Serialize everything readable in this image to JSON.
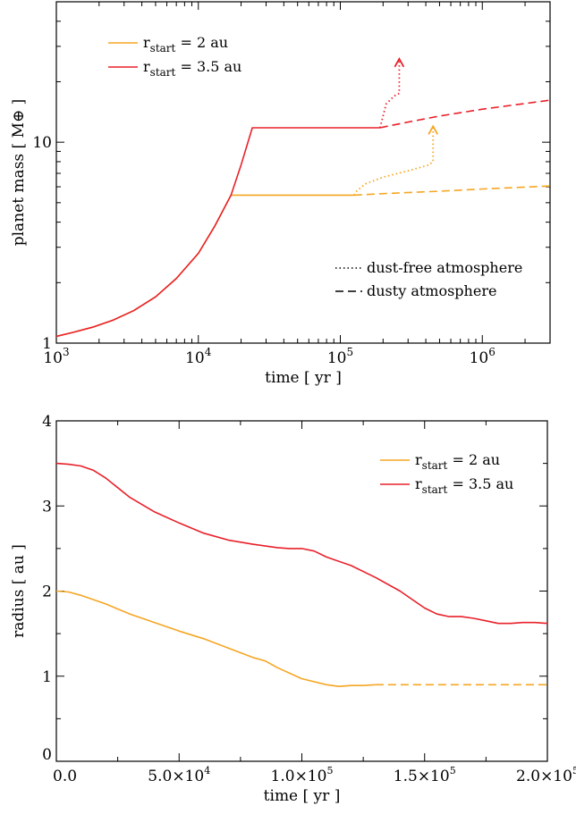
{
  "chart_data": [
    {
      "type": "line",
      "xscale": "log",
      "yscale": "log",
      "xlim": [
        1000,
        3000000
      ],
      "ylim": [
        1,
        50
      ],
      "xlabel": "time [ yr ]",
      "ylabel": "planet mass [ M⊕ ]",
      "xticks": [
        {
          "value": 1000,
          "base": "10",
          "exp": "3"
        },
        {
          "value": 10000,
          "base": "10",
          "exp": "4"
        },
        {
          "value": 100000,
          "base": "10",
          "exp": "5"
        },
        {
          "value": 1000000,
          "base": "10",
          "exp": "6"
        }
      ],
      "yticks": [
        {
          "value": 1,
          "label": "1"
        },
        {
          "value": 10,
          "label": "10"
        }
      ],
      "series": [
        {
          "name": "r_start = 2 au",
          "name_base": "r",
          "name_sub": "start",
          "name_rest": " = 2 au",
          "color": "#f5a623",
          "style": "solid",
          "x": [
            1000,
            1300,
            1800,
            2500,
            3500,
            5000,
            7000,
            10000,
            13000,
            17000,
            50000,
            100000,
            125000
          ],
          "y": [
            1.08,
            1.13,
            1.2,
            1.3,
            1.45,
            1.7,
            2.1,
            2.8,
            3.8,
            5.45,
            5.45,
            5.45,
            5.45
          ]
        },
        {
          "name": "r_start = 3.5 au",
          "name_base": "r",
          "name_sub": "start",
          "name_rest": " = 3.5 au",
          "color": "#e8202a",
          "style": "solid",
          "x": [
            1000,
            1300,
            1800,
            2500,
            3500,
            5000,
            7000,
            10000,
            13000,
            17000,
            20000,
            24000,
            50000,
            100000,
            190000
          ],
          "y": [
            1.08,
            1.13,
            1.2,
            1.3,
            1.45,
            1.7,
            2.1,
            2.8,
            3.8,
            5.45,
            7.7,
            11.8,
            11.8,
            11.8,
            11.8
          ]
        },
        {
          "name": "dusty (2 au)",
          "color": "#f5a623",
          "style": "dashed",
          "x": [
            125000,
            200000,
            500000,
            1000000,
            3000000
          ],
          "y": [
            5.45,
            5.55,
            5.7,
            5.85,
            6.05
          ]
        },
        {
          "name": "dusty (3.5 au)",
          "color": "#e8202a",
          "style": "dashed",
          "x": [
            190000,
            300000,
            500000,
            1000000,
            3000000
          ],
          "y": [
            11.8,
            12.6,
            13.5,
            14.6,
            16.2
          ]
        },
        {
          "name": "dust-free (2 au)",
          "color": "#f5a623",
          "style": "dotted",
          "arrow": true,
          "x": [
            125000,
            130000,
            150000,
            200000,
            300000,
            420000,
            450000,
            450000
          ],
          "y": [
            5.45,
            5.7,
            6.2,
            6.7,
            7.2,
            7.7,
            8.0,
            12.0
          ]
        },
        {
          "name": "dust-free (3.5 au)",
          "color": "#e8202a",
          "style": "dotted",
          "arrow": true,
          "x": [
            190000,
            200000,
            210000,
            240000,
            260000,
            260000
          ],
          "y": [
            11.8,
            13.5,
            15.5,
            17.0,
            17.5,
            26.0
          ]
        }
      ],
      "legend": {
        "placement": "top-left",
        "entries": [
          0,
          1
        ]
      },
      "style_legend": {
        "placement": "bottom-right",
        "entries": [
          {
            "label": "dust-free atmosphere",
            "style": "dotted"
          },
          {
            "label": "dusty atmosphere",
            "style": "dashed"
          }
        ]
      }
    },
    {
      "type": "line",
      "xscale": "linear",
      "yscale": "linear",
      "xlim": [
        0,
        200000
      ],
      "ylim": [
        0,
        4
      ],
      "xlabel": "time [ yr ]",
      "ylabel": "radius [ au ]",
      "xticks": [
        {
          "value": 0,
          "label": "0.0"
        },
        {
          "value": 50000,
          "mant": "5.0",
          "exp": "4"
        },
        {
          "value": 100000,
          "mant": "1.0",
          "exp": "5"
        },
        {
          "value": 150000,
          "mant": "1.5",
          "exp": "5"
        },
        {
          "value": 200000,
          "mant": "2.0",
          "exp": "5"
        }
      ],
      "yticks": [
        {
          "value": 0,
          "label": "0"
        },
        {
          "value": 1,
          "label": "1"
        },
        {
          "value": 2,
          "label": "2"
        },
        {
          "value": 3,
          "label": "3"
        },
        {
          "value": 4,
          "label": "4"
        }
      ],
      "series": [
        {
          "name": "r_start = 2 au",
          "name_base": "r",
          "name_sub": "start",
          "name_rest": " = 2 au",
          "color": "#f5a623",
          "style": "solid",
          "x": [
            0,
            5000,
            10000,
            20000,
            30000,
            40000,
            50000,
            60000,
            70000,
            80000,
            85000,
            90000,
            100000,
            110000,
            115000,
            120000,
            125000,
            130000
          ],
          "y": [
            2.0,
            1.99,
            1.95,
            1.85,
            1.73,
            1.63,
            1.53,
            1.44,
            1.33,
            1.22,
            1.18,
            1.1,
            0.97,
            0.9,
            0.88,
            0.89,
            0.89,
            0.9
          ]
        },
        {
          "name": "dusty (2 au)",
          "color": "#f5a623",
          "style": "dashed",
          "x": [
            130000,
            200000
          ],
          "y": [
            0.9,
            0.9
          ]
        },
        {
          "name": "r_start = 3.5 au",
          "name_base": "r",
          "name_sub": "start",
          "name_rest": " = 3.5 au",
          "color": "#e8202a",
          "style": "solid",
          "x": [
            0,
            5000,
            10000,
            15000,
            20000,
            30000,
            40000,
            50000,
            60000,
            70000,
            80000,
            90000,
            95000,
            100000,
            105000,
            110000,
            120000,
            130000,
            140000,
            145000,
            150000,
            155000,
            160000,
            165000,
            170000,
            175000,
            180000,
            185000,
            190000,
            195000,
            200000
          ],
          "y": [
            3.5,
            3.49,
            3.47,
            3.42,
            3.33,
            3.1,
            2.93,
            2.8,
            2.68,
            2.6,
            2.55,
            2.51,
            2.5,
            2.5,
            2.47,
            2.4,
            2.3,
            2.16,
            2.0,
            1.9,
            1.8,
            1.73,
            1.7,
            1.7,
            1.68,
            1.65,
            1.62,
            1.62,
            1.63,
            1.63,
            1.62
          ]
        }
      ],
      "legend": {
        "placement": "top-right",
        "entries": [
          0,
          2
        ]
      }
    }
  ]
}
